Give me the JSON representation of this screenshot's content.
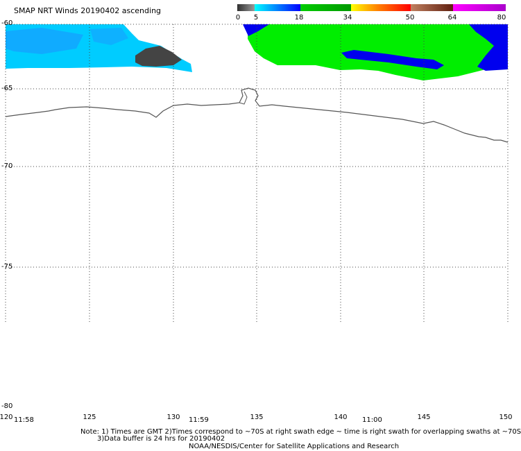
{
  "title": "SMAP NRT Winds 20190402 ascending",
  "colorbar": {
    "labels": [
      "0",
      "5",
      "18",
      "34",
      "50",
      "64",
      "80"
    ],
    "segments": [
      {
        "from": 0,
        "to": 5,
        "colors": [
          "#303030",
          "#9a9a9a"
        ]
      },
      {
        "from": 5,
        "to": 18,
        "colors": [
          "#00ffff",
          "#0000ff"
        ]
      },
      {
        "from": 18,
        "to": 34,
        "colors": [
          "#00cc00",
          "#009900"
        ]
      },
      {
        "from": 34,
        "to": 50,
        "colors": [
          "#ffff00",
          "#ff8000",
          "#ff0000"
        ]
      },
      {
        "from": 50,
        "to": 64,
        "colors": [
          "#c08060",
          "#602010"
        ]
      },
      {
        "from": 64,
        "to": 80,
        "colors": [
          "#ff00ff",
          "#aa00cc"
        ]
      }
    ]
  },
  "map": {
    "lat_labels": [
      "-60",
      "-65",
      "-70",
      "-75",
      "-80"
    ],
    "lon_labels": [
      "120",
      "125",
      "130",
      "135",
      "140",
      "145",
      "150"
    ],
    "time_labels": [
      "11:58",
      "11:59",
      "11:00"
    ],
    "colors": {
      "light_wind": "#00ccff",
      "moderate_wind": "#0000ee",
      "strong_wind": "#00ee00",
      "calm": "#444444",
      "coastline": "#555555",
      "grid": "#444444"
    }
  },
  "notes": {
    "line1": "Note: 1) Times are GMT 2)Times correspond to ~70S at right swath edge ~ time is right swath for overlapping swaths at ~70S",
    "line2": "3)Data buffer is 24 hrs for 20190402",
    "line3": "NOAA/NESDIS/Center for Satellite Applications and Research"
  }
}
